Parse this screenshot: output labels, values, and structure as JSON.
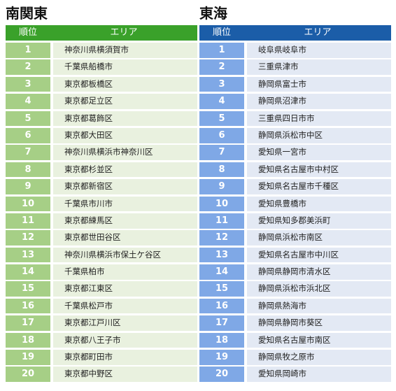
{
  "left": {
    "title": "南関東",
    "header": {
      "rank": "順位",
      "area": "エリア"
    },
    "rows": [
      {
        "rank": "1",
        "area": "神奈川県横須賀市"
      },
      {
        "rank": "2",
        "area": "千葉県船橋市"
      },
      {
        "rank": "3",
        "area": "東京都板橋区"
      },
      {
        "rank": "4",
        "area": "東京都足立区"
      },
      {
        "rank": "5",
        "area": "東京都葛飾区"
      },
      {
        "rank": "6",
        "area": "東京都大田区"
      },
      {
        "rank": "7",
        "area": "神奈川県横浜市神奈川区"
      },
      {
        "rank": "8",
        "area": "東京都杉並区"
      },
      {
        "rank": "9",
        "area": "東京都新宿区"
      },
      {
        "rank": "10",
        "area": "千葉県市川市"
      },
      {
        "rank": "11",
        "area": "東京都練馬区"
      },
      {
        "rank": "12",
        "area": "東京都世田谷区"
      },
      {
        "rank": "13",
        "area": "神奈川県横浜市保土ケ谷区"
      },
      {
        "rank": "14",
        "area": "千葉県柏市"
      },
      {
        "rank": "15",
        "area": "東京都江東区"
      },
      {
        "rank": "16",
        "area": "千葉県松戸市"
      },
      {
        "rank": "17",
        "area": "東京都江戸川区"
      },
      {
        "rank": "18",
        "area": "東京都八王子市"
      },
      {
        "rank": "19",
        "area": "東京都町田市"
      },
      {
        "rank": "20",
        "area": "東京都中野区"
      }
    ]
  },
  "right": {
    "title": "東海",
    "header": {
      "rank": "順位",
      "area": "エリア"
    },
    "rows": [
      {
        "rank": "1",
        "area": "岐阜県岐阜市"
      },
      {
        "rank": "2",
        "area": "三重県津市"
      },
      {
        "rank": "3",
        "area": "静岡県富士市"
      },
      {
        "rank": "4",
        "area": "静岡県沼津市"
      },
      {
        "rank": "5",
        "area": "三重県四日市市"
      },
      {
        "rank": "6",
        "area": "静岡県浜松市中区"
      },
      {
        "rank": "7",
        "area": "愛知県一宮市"
      },
      {
        "rank": "8",
        "area": "愛知県名古屋市中村区"
      },
      {
        "rank": "9",
        "area": "愛知県名古屋市千種区"
      },
      {
        "rank": "10",
        "area": "愛知県豊橋市"
      },
      {
        "rank": "11",
        "area": "愛知県知多郡美浜町"
      },
      {
        "rank": "12",
        "area": "静岡県浜松市南区"
      },
      {
        "rank": "13",
        "area": "愛知県名古屋市中川区"
      },
      {
        "rank": "14",
        "area": "静岡県静岡市清水区"
      },
      {
        "rank": "15",
        "area": "静岡県浜松市浜北区"
      },
      {
        "rank": "16",
        "area": "静岡県熱海市"
      },
      {
        "rank": "17",
        "area": "静岡県静岡市葵区"
      },
      {
        "rank": "18",
        "area": "愛知県名古屋市南区"
      },
      {
        "rank": "19",
        "area": "静岡県牧之原市"
      },
      {
        "rank": "20",
        "area": "愛知県岡崎市"
      }
    ]
  }
}
